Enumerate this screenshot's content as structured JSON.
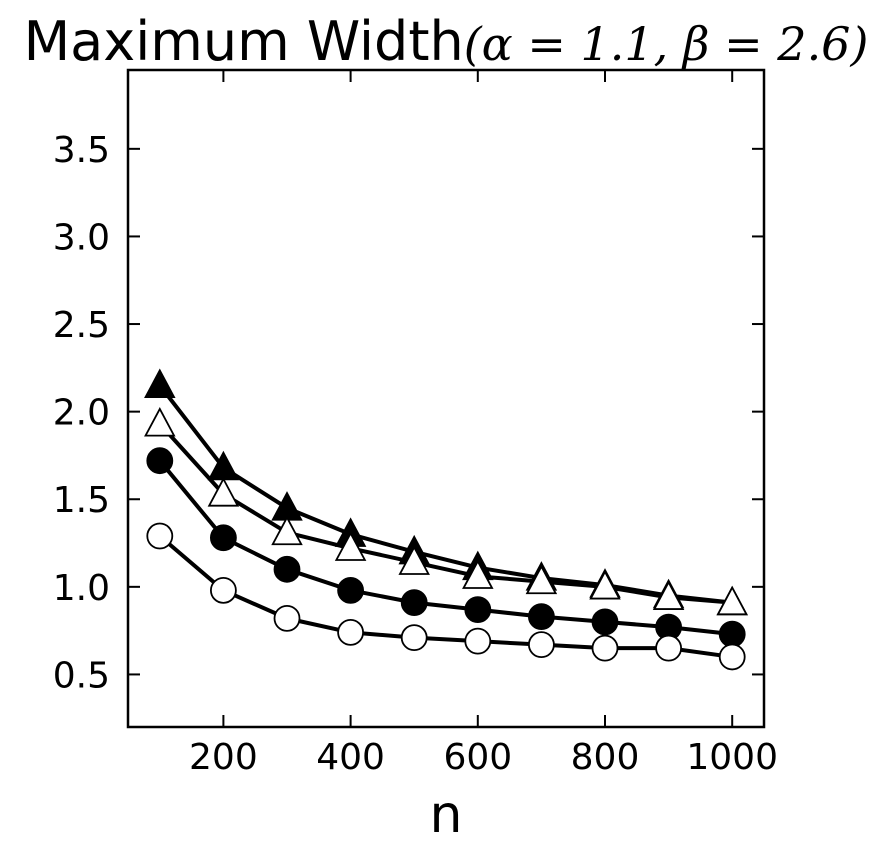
{
  "chart_data": {
    "type": "line",
    "title": "Maximum Width",
    "title_params": "(α = 1.1, β = 2.6)",
    "xlabel": "n",
    "ylabel": "",
    "xlim": [
      50,
      1050
    ],
    "ylim": [
      0.2,
      3.95
    ],
    "x_ticks": [
      200,
      400,
      600,
      800,
      1000
    ],
    "y_ticks": [
      0.5,
      1.0,
      1.5,
      2.0,
      2.5,
      3.0,
      3.5
    ],
    "x_tick_labels": [
      "200",
      "400",
      "600",
      "800",
      "1000"
    ],
    "y_tick_labels": [
      "0.5",
      "1.0",
      "1.5",
      "2.0",
      "2.5",
      "3.0",
      "3.5"
    ],
    "grid": false,
    "legend": "none",
    "x": [
      100,
      200,
      300,
      400,
      500,
      600,
      700,
      800,
      900,
      1000
    ],
    "series": [
      {
        "marker": "triangle-filled",
        "values": [
          2.15,
          1.68,
          1.45,
          1.3,
          1.2,
          1.11,
          1.05,
          1.01,
          0.95,
          0.91
        ]
      },
      {
        "marker": "triangle-open",
        "values": [
          1.93,
          1.53,
          1.31,
          1.22,
          1.14,
          1.06,
          1.03,
          1.0,
          0.94,
          0.91
        ]
      },
      {
        "marker": "circle-filled",
        "values": [
          1.72,
          1.28,
          1.1,
          0.98,
          0.91,
          0.87,
          0.83,
          0.8,
          0.77,
          0.73
        ]
      },
      {
        "marker": "circle-open",
        "values": [
          1.29,
          0.98,
          0.82,
          0.74,
          0.71,
          0.69,
          0.67,
          0.65,
          0.65,
          0.6
        ]
      }
    ],
    "colors": {
      "line": "#000000",
      "filled": "#000000",
      "open": "#ffffff"
    }
  }
}
